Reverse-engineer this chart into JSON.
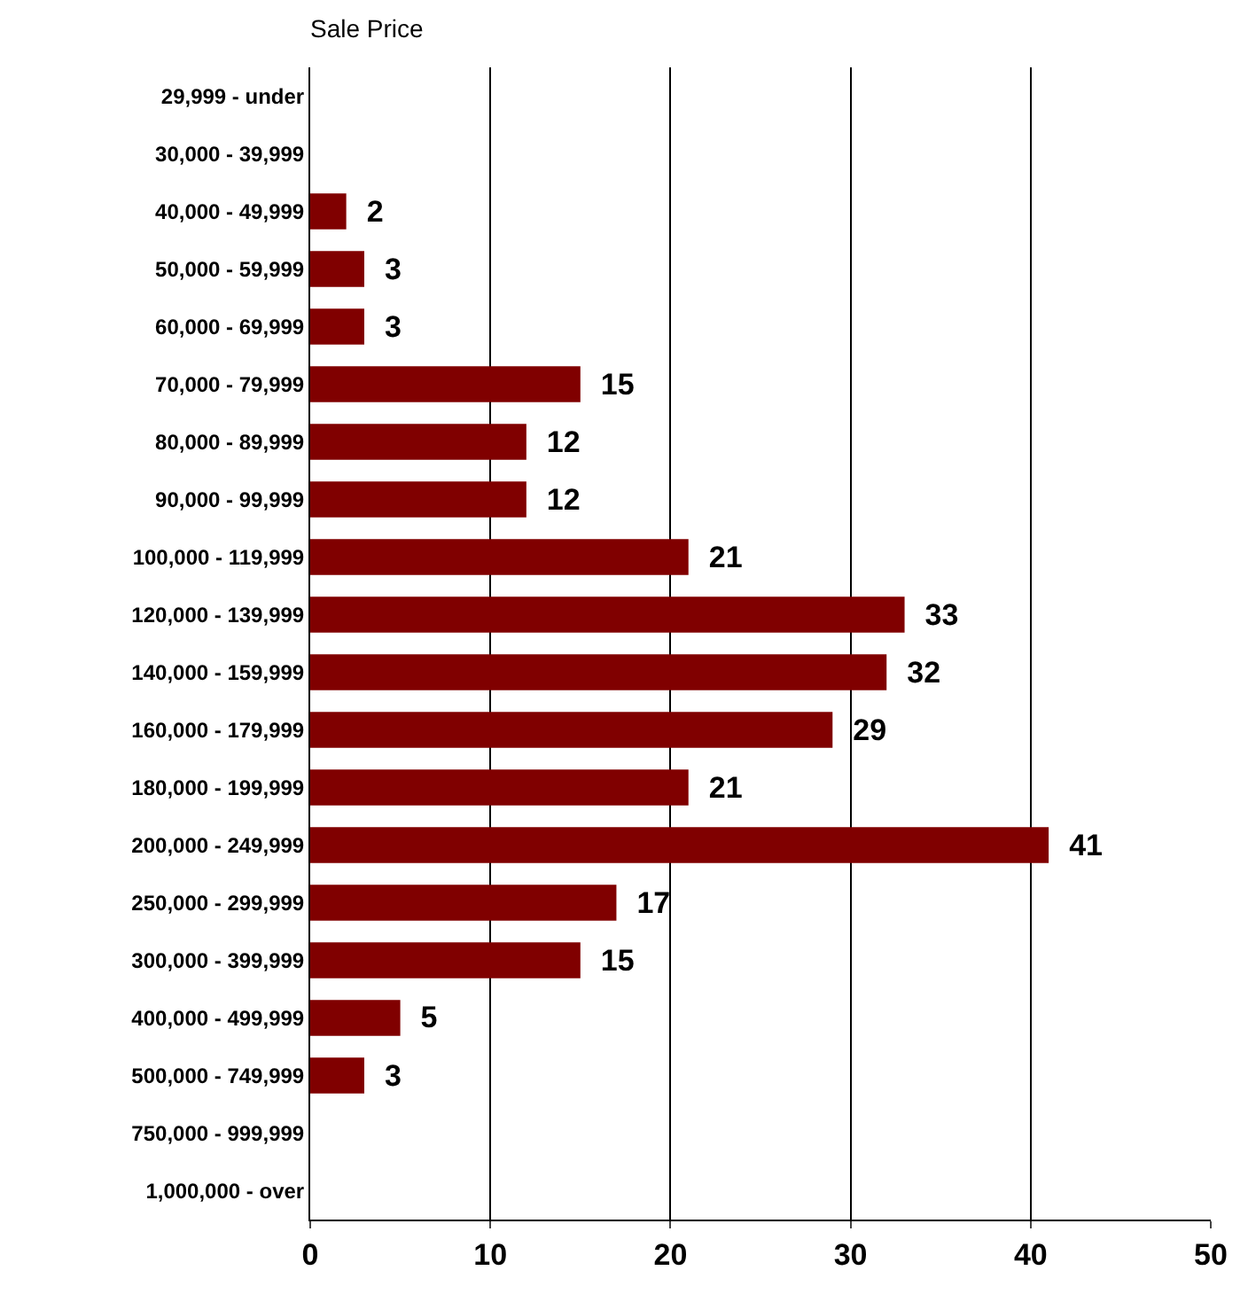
{
  "chart_data": {
    "type": "bar",
    "orientation": "horizontal",
    "title": "Sale Price",
    "categories": [
      "29,999 - under",
      "30,000 - 39,999",
      "40,000 - 49,999",
      "50,000 - 59,999",
      "60,000 - 69,999",
      "70,000 - 79,999",
      "80,000 - 89,999",
      "90,000 - 99,999",
      "100,000 - 119,999",
      "120,000 - 139,999",
      "140,000 - 159,999",
      "160,000 - 179,999",
      "180,000 - 199,999",
      "200,000 - 249,999",
      "250,000 - 299,999",
      "300,000 - 399,999",
      "400,000 - 499,999",
      "500,000 - 749,999",
      "750,000 - 999,999",
      "1,000,000 - over"
    ],
    "values": [
      0,
      0,
      2,
      3,
      3,
      15,
      12,
      12,
      21,
      33,
      32,
      29,
      21,
      41,
      17,
      15,
      5,
      3,
      0,
      0
    ],
    "value_labels": [
      null,
      null,
      "2",
      "3",
      "3",
      "15",
      "12",
      "12",
      "21",
      "33",
      "32",
      "29",
      "21",
      "41",
      "17",
      "15",
      "5",
      "3",
      null,
      null
    ],
    "color": "#800000",
    "xlim": [
      0,
      50
    ],
    "xticks": [
      0,
      10,
      20,
      30,
      40,
      50
    ],
    "grid": "x"
  }
}
